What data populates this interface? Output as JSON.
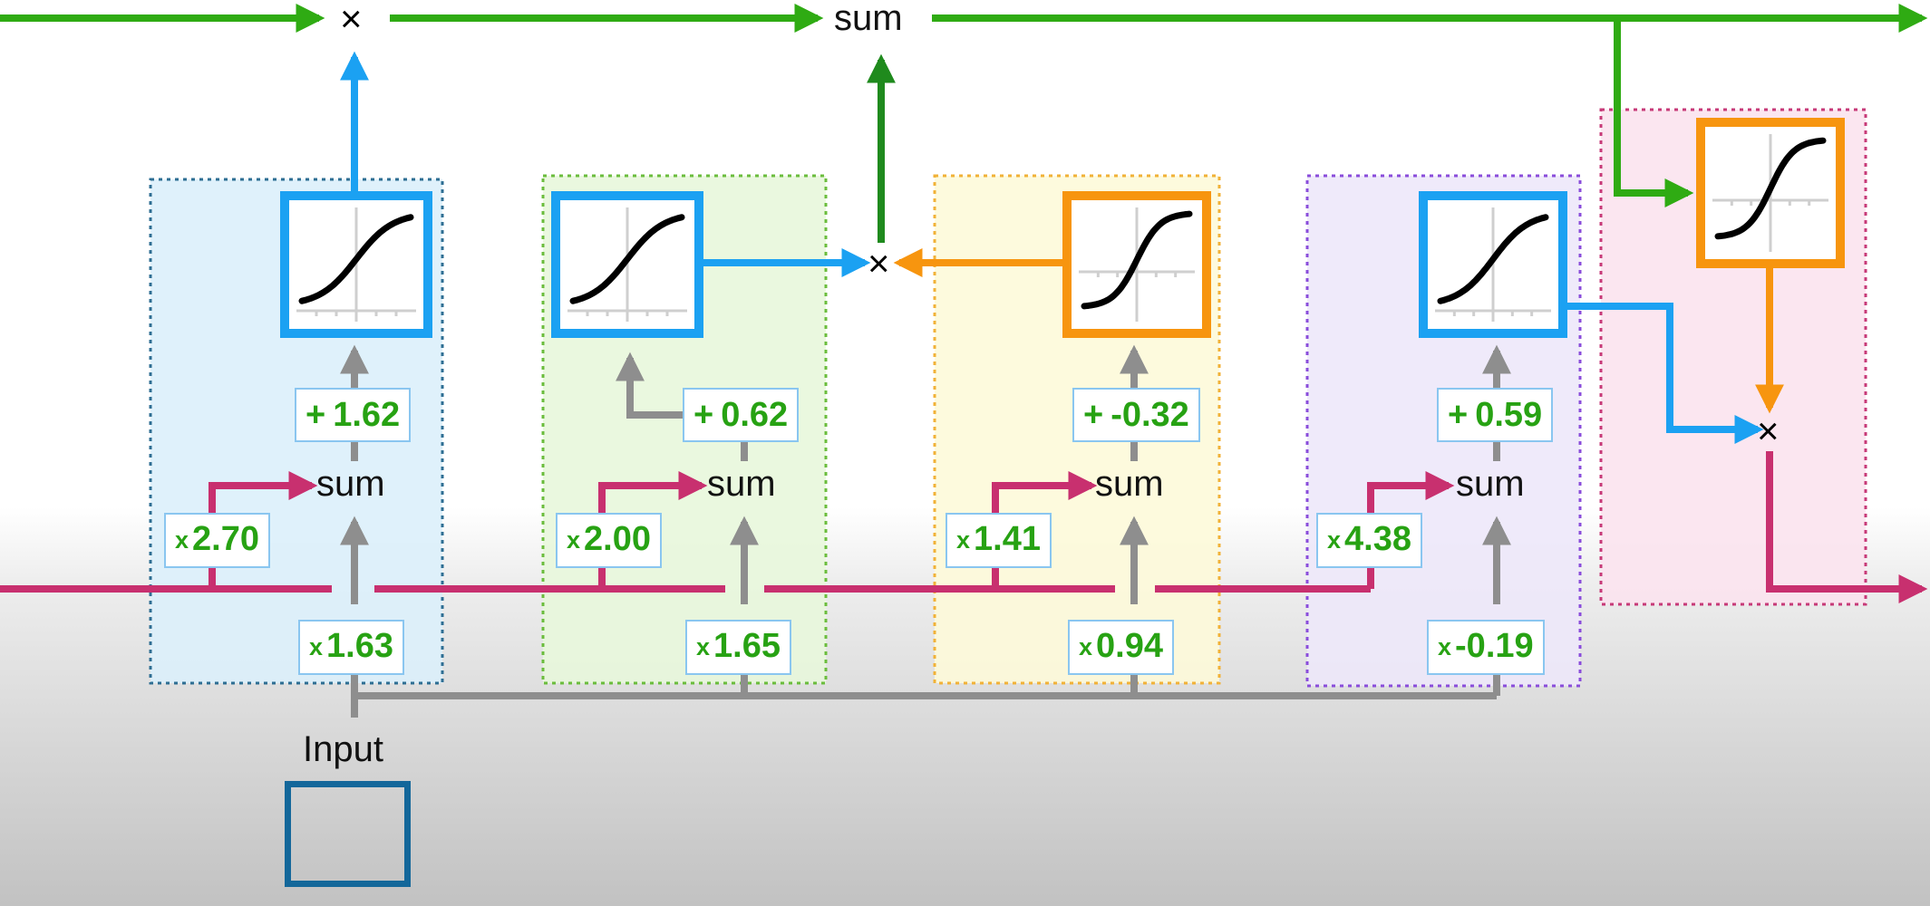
{
  "nodes": {
    "top_multiply": "×",
    "top_sum": "sum",
    "output_multiply": "×",
    "input_label": "Input"
  },
  "blocks": [
    {
      "sum_label": "sum",
      "icon": "sigmoid-curve",
      "stroke": "#1ba1f2",
      "short_weight": {
        "op": "x",
        "value": "2.70"
      },
      "input_weight": {
        "op": "x",
        "value": "1.63"
      },
      "bias": {
        "op": "+",
        "value": "1.62"
      }
    },
    {
      "sum_label": "sum",
      "icon": "sigmoid-curve",
      "stroke": "#1ba1f2",
      "short_weight": {
        "op": "x",
        "value": "2.00"
      },
      "input_weight": {
        "op": "x",
        "value": "1.65"
      },
      "bias": {
        "op": "+",
        "value": "0.62"
      }
    },
    {
      "sum_label": "sum",
      "icon": "tanh-curve",
      "stroke": "#f7950f",
      "short_weight": {
        "op": "x",
        "value": "1.41"
      },
      "input_weight": {
        "op": "x",
        "value": "0.94"
      },
      "bias": {
        "op": "+",
        "value": "-0.32"
      },
      "times": "×"
    },
    {
      "sum_label": "sum",
      "icon": "sigmoid-curve",
      "stroke": "#1ba1f2",
      "short_weight": {
        "op": "x",
        "value": "4.38"
      },
      "input_weight": {
        "op": "x",
        "value": "-0.19"
      },
      "bias": {
        "op": "+",
        "value": "0.59"
      }
    }
  ],
  "output_block": {
    "icon": "tanh-curve",
    "stroke": "#f7950f"
  },
  "colors": {
    "long_term": "#2fab13",
    "long_term_dark": "#1f8a1d",
    "short_term": "#c8306f",
    "input_line": "#8e8e8e",
    "sigmoid": "#1ba1f2",
    "tanh": "#f7950f",
    "weight_text": "#27a213",
    "input_box": "#13679a"
  }
}
